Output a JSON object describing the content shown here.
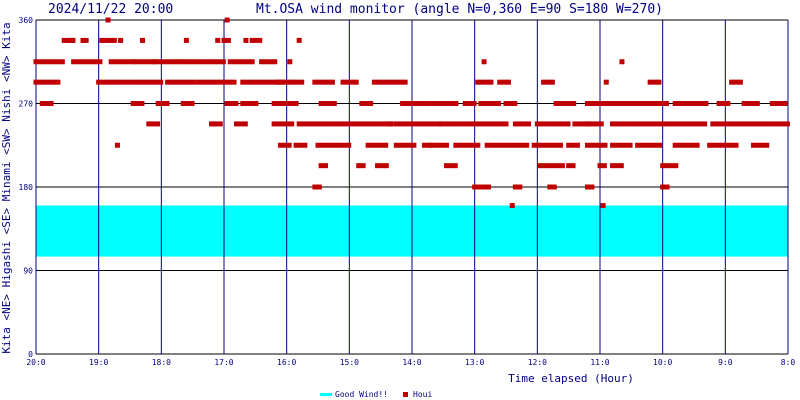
{
  "chart_data": {
    "type": "scatter",
    "timestamp": "2024/11/22 20:00",
    "title": "Mt.OSA wind monitor (angle N=0,360 E=90 S=180 W=270)",
    "ylabel": "Kita <NE> Higashi <SE> Minami <SW> Nishi <NW> Kita",
    "xlabel": "Time elapsed (Hour)",
    "ylim": [
      0,
      360
    ],
    "yticks": [
      0,
      90,
      180,
      270,
      360
    ],
    "xticks": [
      "20:0",
      "19:0",
      "18:0",
      "17:0",
      "16:0",
      "15:0",
      "14:0",
      "13:0",
      "12:0",
      "11:0",
      "10:0",
      "9:0",
      "8:0"
    ],
    "x_range_hours": [
      0,
      12
    ],
    "good_wind_band": [
      105,
      160
    ],
    "grid": true,
    "legend": [
      {
        "name": "Good Wind!!",
        "color": "#00ffff",
        "marker": "band"
      },
      {
        "name": "Houi",
        "color": "#c00000",
        "marker": "square"
      }
    ],
    "colors": {
      "data": "#c00000",
      "band": "#00ffff",
      "vgrid": "#000080",
      "hgrid": "#000000",
      "text": "#000080"
    },
    "segments": [
      [
        0.0,
        0.45,
        315
      ],
      [
        0.45,
        0.6,
        338
      ],
      [
        0.6,
        1.05,
        315
      ],
      [
        1.05,
        1.2,
        338
      ],
      [
        1.2,
        1.6,
        315
      ],
      [
        1.6,
        1.9,
        315
      ],
      [
        1.9,
        2.3,
        315
      ],
      [
        2.3,
        2.5,
        315
      ],
      [
        2.5,
        3.0,
        315
      ],
      [
        3.0,
        3.1,
        338
      ],
      [
        3.1,
        3.5,
        315
      ],
      [
        3.5,
        3.6,
        338
      ],
      [
        3.6,
        3.85,
        315
      ],
      [
        3.85,
        4.1,
        293
      ],
      [
        0.0,
        0.35,
        293
      ],
      [
        1.0,
        1.45,
        293
      ],
      [
        1.5,
        2.0,
        293
      ],
      [
        2.1,
        2.55,
        293
      ],
      [
        2.6,
        3.2,
        293
      ],
      [
        3.3,
        3.6,
        293
      ],
      [
        3.65,
        3.95,
        293
      ],
      [
        4.1,
        4.3,
        293
      ],
      [
        4.45,
        4.75,
        293
      ],
      [
        4.9,
        5.15,
        293
      ],
      [
        5.4,
        5.7,
        293
      ],
      [
        5.75,
        5.95,
        293
      ],
      [
        7.05,
        7.3,
        293
      ],
      [
        7.4,
        7.6,
        293
      ],
      [
        8.1,
        8.3,
        293
      ],
      [
        9.8,
        10.0,
        293
      ],
      [
        11.1,
        11.3,
        293
      ],
      [
        0.1,
        0.25,
        270
      ],
      [
        1.55,
        1.7,
        270
      ],
      [
        1.95,
        2.15,
        270
      ],
      [
        2.35,
        2.5,
        270
      ],
      [
        3.05,
        3.2,
        270
      ],
      [
        3.3,
        3.55,
        270
      ],
      [
        3.8,
        4.2,
        270
      ],
      [
        4.55,
        4.8,
        270
      ],
      [
        5.2,
        5.4,
        270
      ],
      [
        5.85,
        6.3,
        270
      ],
      [
        6.35,
        6.75,
        270
      ],
      [
        6.85,
        7.05,
        270
      ],
      [
        7.1,
        7.4,
        270
      ],
      [
        7.5,
        7.7,
        270
      ],
      [
        8.3,
        8.6,
        270
      ],
      [
        8.8,
        9.8,
        270
      ],
      [
        9.85,
        10.1,
        270
      ],
      [
        10.2,
        10.5,
        270
      ],
      [
        10.55,
        10.75,
        270
      ],
      [
        10.9,
        11.1,
        270
      ],
      [
        11.3,
        11.55,
        270
      ],
      [
        11.75,
        11.95,
        270
      ],
      [
        11.95,
        12.0,
        270
      ],
      [
        1.8,
        2.0,
        248
      ],
      [
        2.8,
        2.95,
        248
      ],
      [
        3.2,
        3.35,
        248
      ],
      [
        3.8,
        4.1,
        248
      ],
      [
        4.2,
        5.7,
        248
      ],
      [
        5.75,
        7.1,
        248
      ],
      [
        7.15,
        7.55,
        248
      ],
      [
        7.65,
        7.9,
        248
      ],
      [
        8.0,
        8.5,
        248
      ],
      [
        8.6,
        9.05,
        248
      ],
      [
        9.2,
        10.2,
        248
      ],
      [
        10.25,
        10.7,
        248
      ],
      [
        10.8,
        12.0,
        248
      ],
      [
        3.9,
        4.05,
        225
      ],
      [
        4.15,
        4.3,
        225
      ],
      [
        4.5,
        5.0,
        225
      ],
      [
        5.3,
        5.6,
        225
      ],
      [
        5.75,
        6.05,
        225
      ],
      [
        6.2,
        6.6,
        225
      ],
      [
        6.7,
        7.1,
        225
      ],
      [
        7.2,
        7.85,
        225
      ],
      [
        7.95,
        8.4,
        225
      ],
      [
        8.5,
        8.7,
        225
      ],
      [
        8.8,
        9.1,
        225
      ],
      [
        9.2,
        9.5,
        225
      ],
      [
        9.6,
        10.0,
        225
      ],
      [
        10.2,
        10.6,
        225
      ],
      [
        10.75,
        11.2,
        225
      ],
      [
        11.45,
        11.7,
        225
      ],
      [
        4.55,
        4.65,
        203
      ],
      [
        5.15,
        5.25,
        203
      ],
      [
        5.45,
        5.6,
        203
      ],
      [
        6.55,
        6.7,
        203
      ],
      [
        8.05,
        8.4,
        203
      ],
      [
        8.5,
        8.6,
        203
      ],
      [
        9.0,
        9.1,
        203
      ],
      [
        9.2,
        9.4,
        203
      ],
      [
        10.0,
        10.25,
        203
      ],
      [
        4.45,
        4.55,
        180
      ],
      [
        7.0,
        7.1,
        180
      ],
      [
        7.15,
        7.25,
        180
      ],
      [
        7.65,
        7.75,
        180
      ],
      [
        8.2,
        8.3,
        180
      ],
      [
        8.8,
        8.9,
        180
      ],
      [
        10.0,
        10.1,
        180
      ]
    ],
    "points": [
      [
        0.55,
        338
      ],
      [
        0.75,
        338
      ],
      [
        0.8,
        338
      ],
      [
        1.15,
        360
      ],
      [
        1.25,
        338
      ],
      [
        1.35,
        338
      ],
      [
        1.7,
        338
      ],
      [
        2.4,
        338
      ],
      [
        2.9,
        338
      ],
      [
        3.0,
        338
      ],
      [
        3.05,
        360
      ],
      [
        3.35,
        338
      ],
      [
        3.45,
        338
      ],
      [
        4.05,
        315
      ],
      [
        4.2,
        338
      ],
      [
        7.15,
        315
      ],
      [
        9.35,
        315
      ],
      [
        9.1,
        293
      ],
      [
        1.3,
        225
      ],
      [
        2.85,
        248
      ],
      [
        5.65,
        248
      ],
      [
        7.6,
        160
      ],
      [
        9.05,
        160
      ],
      [
        6.3,
        225
      ],
      [
        6.45,
        248
      ],
      [
        8.8,
        248
      ]
    ]
  }
}
